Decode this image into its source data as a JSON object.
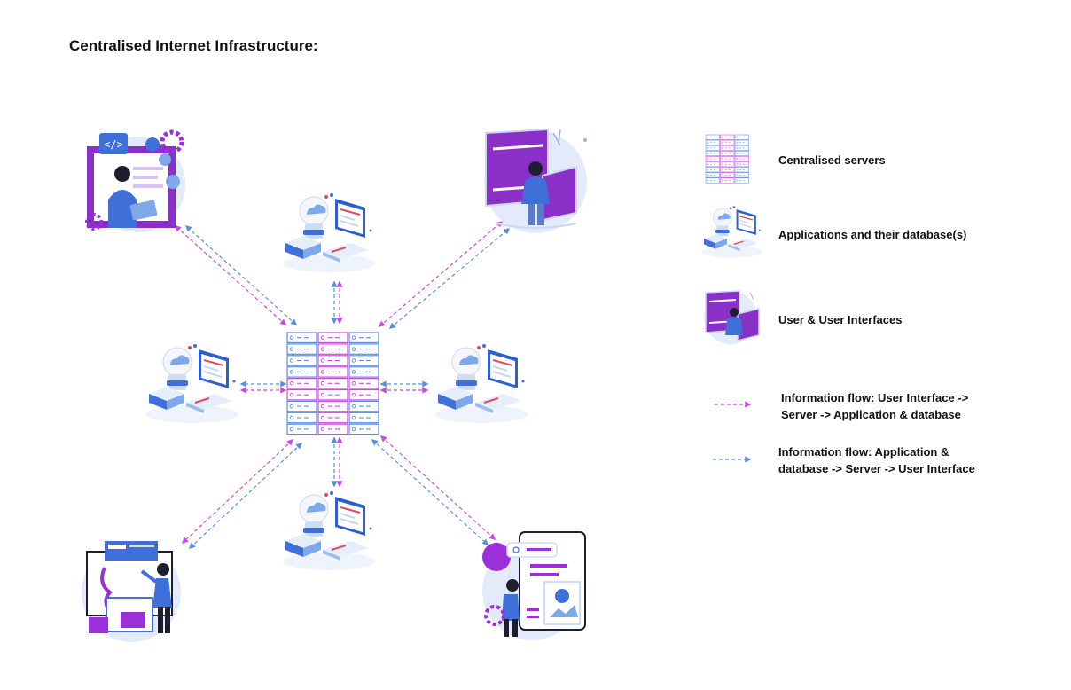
{
  "title": "Centralised Internet Infrastructure:",
  "colors": {
    "magenta": "#c94ce0",
    "blue": "#5a8fe0",
    "purple": "#9b2fd9",
    "navy": "#2b3a8c",
    "light_blue": "#cddcf7"
  },
  "icons": {
    "server": "server-rack-icon",
    "application": "application-database-icon",
    "user": "user-interface-icon"
  },
  "legend": {
    "servers_label": "Centralised servers",
    "applications_label": "Applications and their database(s)",
    "users_label": "User & User Interfaces",
    "flow_magenta_line1": "Information flow: User Interface ->",
    "flow_magenta_line2": "Server -> Application & database",
    "flow_blue_line1": "Information flow: Application &",
    "flow_blue_line2": "database -> Server -> User Interface"
  }
}
